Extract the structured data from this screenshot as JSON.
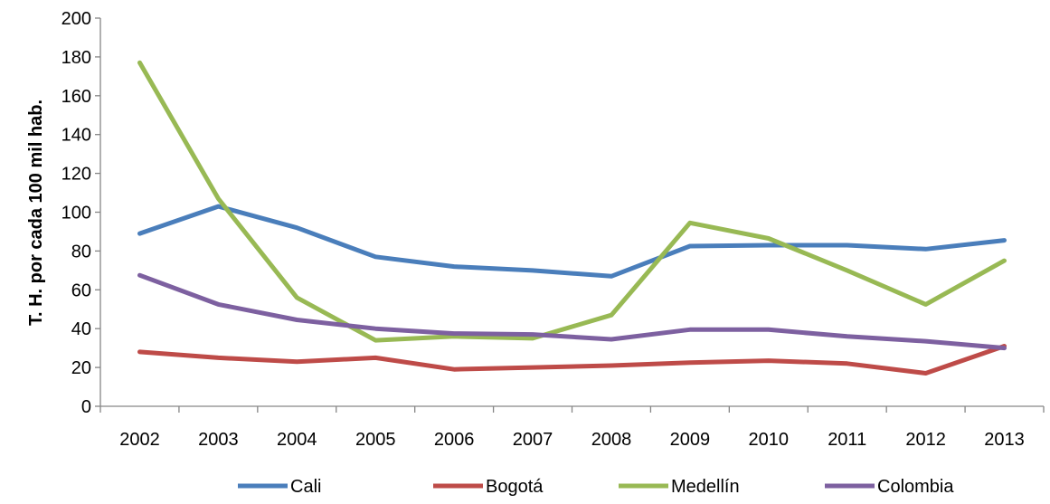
{
  "chart_data": {
    "type": "line",
    "title": "",
    "xlabel": "",
    "ylabel": "T. H. por cada 100 mil hab.",
    "ylim": [
      0,
      200
    ],
    "yticks": [
      0,
      20,
      40,
      60,
      80,
      100,
      120,
      140,
      160,
      180,
      200
    ],
    "categories": [
      "2002",
      "2003",
      "2004",
      "2005",
      "2006",
      "2007",
      "2008",
      "2009",
      "2010",
      "2011",
      "2012",
      "2013"
    ],
    "grid": false,
    "legend_position": "bottom",
    "series": [
      {
        "name": "Cali",
        "color": "#4a7ebb",
        "values": [
          89,
          103,
          92,
          77,
          72,
          70,
          67,
          82.5,
          83,
          83,
          81,
          85.5
        ]
      },
      {
        "name": "Bogotá",
        "color": "#be4b48",
        "values": [
          28,
          25,
          23,
          25,
          19,
          20,
          21,
          22.5,
          23.5,
          22,
          17,
          31
        ]
      },
      {
        "name": "Medellín",
        "color": "#98b954",
        "values": [
          177,
          107,
          56,
          34,
          36,
          35,
          47,
          94.5,
          86.5,
          70,
          52.5,
          75
        ]
      },
      {
        "name": "Colombia",
        "color": "#7d60a0",
        "values": [
          67.5,
          52.5,
          44.5,
          40,
          37.5,
          37,
          34.5,
          39.5,
          39.5,
          36,
          33.5,
          30
        ]
      }
    ]
  }
}
